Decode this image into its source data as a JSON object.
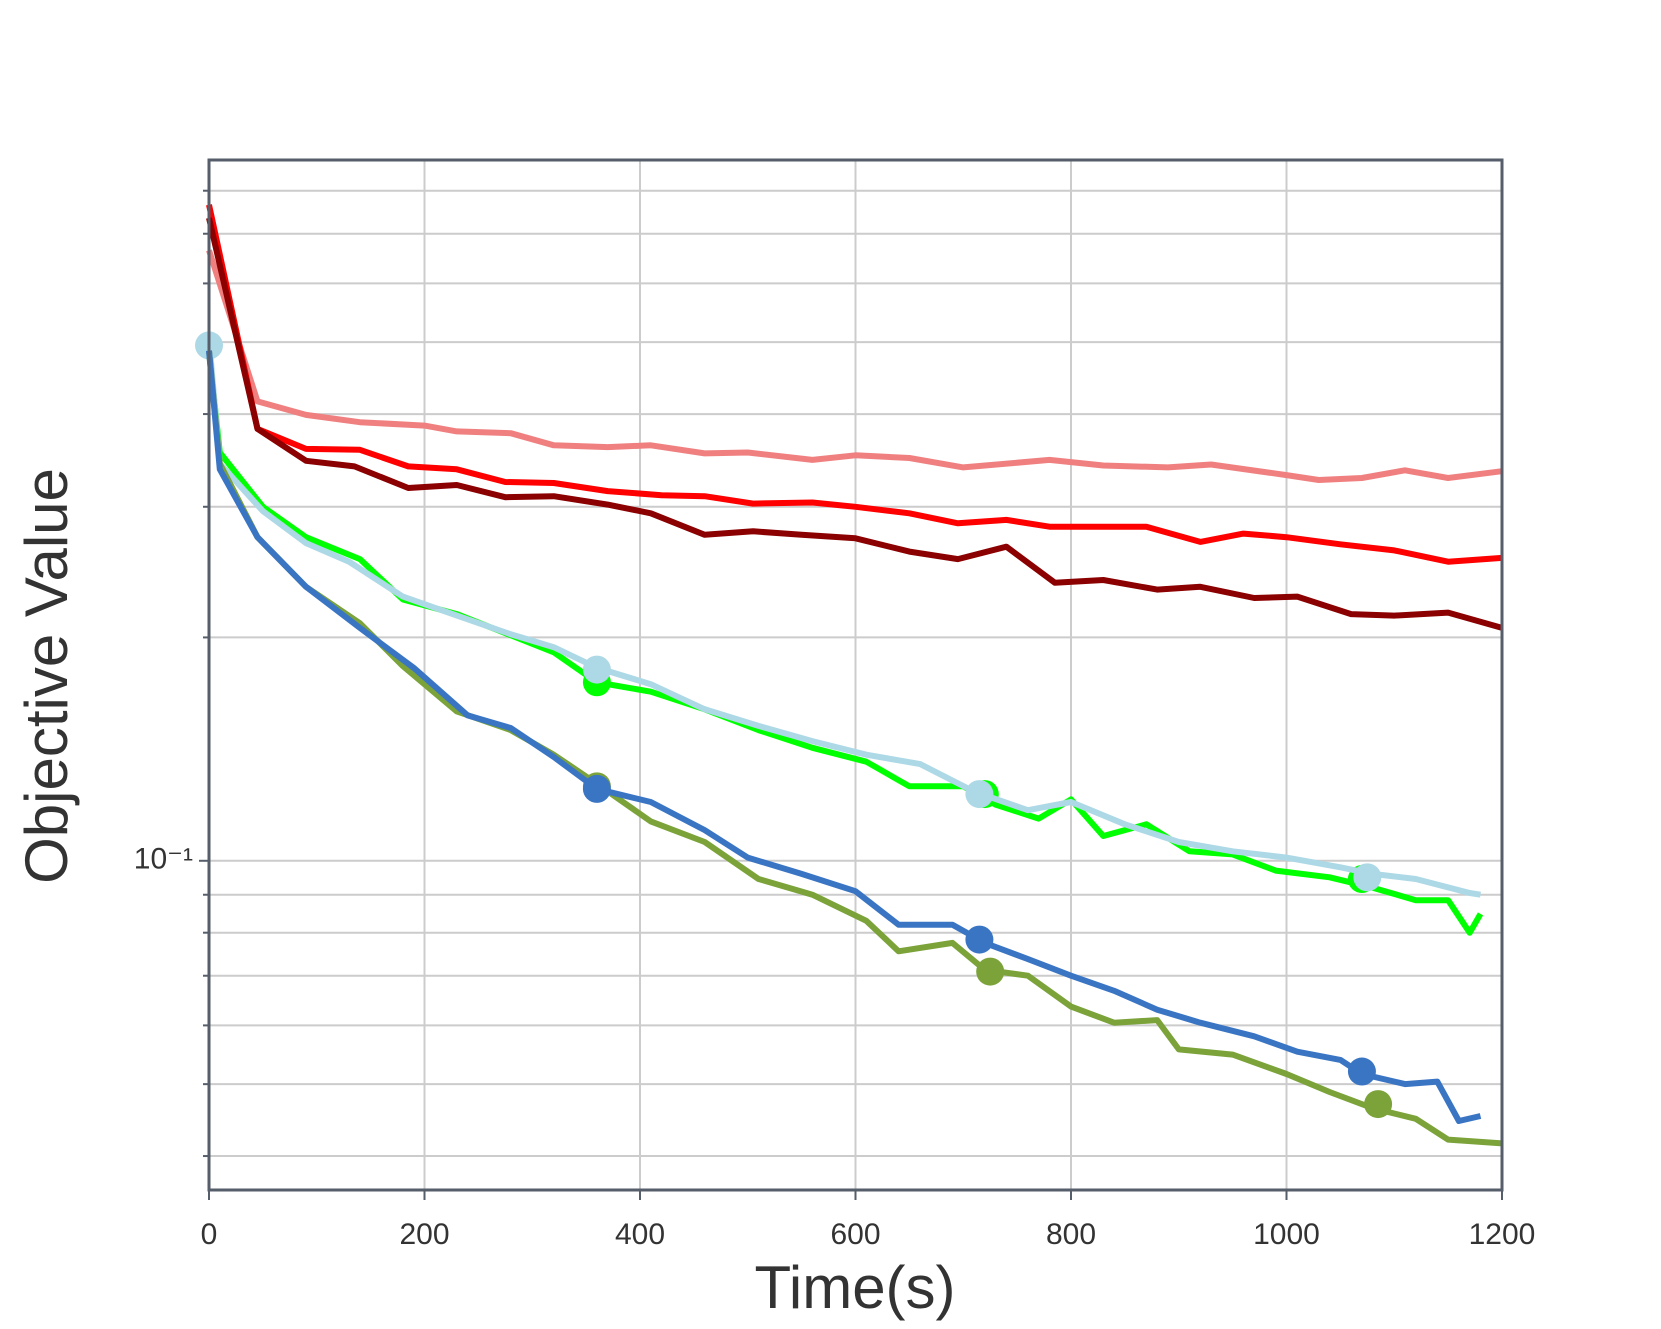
{
  "chart_data": {
    "type": "line",
    "x_label": "Time(s)",
    "y_label": "Objective Value",
    "log_y": true,
    "grid": true,
    "xlim": [
      0,
      1200
    ],
    "xticks": [
      0,
      200,
      400,
      600,
      800,
      1000,
      1200
    ],
    "ylim": [
      0.036,
      0.88
    ],
    "yticks": [
      {
        "value": 0.1,
        "label": "10⁻¹"
      }
    ],
    "minor_yticks": [
      0.04,
      0.05,
      0.06,
      0.07,
      0.08,
      0.09,
      0.2,
      0.3,
      0.4,
      0.5,
      0.6,
      0.7,
      0.8
    ],
    "series": [
      {
        "color": "#f08080",
        "x": [
          0,
          45,
          90,
          140,
          200,
          230,
          280,
          320,
          370,
          410,
          460,
          500,
          560,
          600,
          650,
          700,
          780,
          830,
          890,
          930,
          1000,
          1030,
          1070,
          1110,
          1150,
          1200
        ],
        "values": [
          0.665,
          0.416,
          0.399,
          0.39,
          0.386,
          0.379,
          0.377,
          0.363,
          0.361,
          0.363,
          0.354,
          0.355,
          0.347,
          0.352,
          0.349,
          0.339,
          0.347,
          0.341,
          0.339,
          0.342,
          0.331,
          0.326,
          0.328,
          0.336,
          0.328,
          0.335
        ]
      },
      {
        "color": "#ff0000",
        "x": [
          0,
          45,
          90,
          140,
          185,
          230,
          275,
          320,
          370,
          420,
          460,
          505,
          560,
          600,
          650,
          695,
          740,
          780,
          830,
          870,
          920,
          960,
          1000,
          1050,
          1100,
          1150,
          1200
        ],
        "values": [
          0.766,
          0.382,
          0.359,
          0.358,
          0.34,
          0.337,
          0.324,
          0.323,
          0.315,
          0.311,
          0.31,
          0.303,
          0.304,
          0.3,
          0.294,
          0.285,
          0.288,
          0.282,
          0.282,
          0.282,
          0.269,
          0.276,
          0.273,
          0.267,
          0.262,
          0.253,
          0.256
        ]
      },
      {
        "color": "#8b0000",
        "x": [
          0,
          45,
          90,
          135,
          185,
          230,
          275,
          320,
          370,
          410,
          460,
          505,
          550,
          600,
          650,
          695,
          740,
          785,
          830,
          880,
          920,
          970,
          1010,
          1060,
          1100,
          1150,
          1200
        ],
        "values": [
          0.735,
          0.382,
          0.346,
          0.34,
          0.318,
          0.321,
          0.309,
          0.31,
          0.302,
          0.294,
          0.275,
          0.278,
          0.275,
          0.272,
          0.261,
          0.255,
          0.265,
          0.237,
          0.239,
          0.232,
          0.234,
          0.226,
          0.227,
          0.215,
          0.214,
          0.216,
          0.206
        ]
      },
      {
        "color": "#00ff00",
        "x": [
          0,
          10,
          50,
          90,
          140,
          180,
          230,
          270,
          320,
          360,
          410,
          460,
          510,
          560,
          610,
          650,
          700,
          730,
          770,
          800,
          830,
          870,
          910,
          950,
          990,
          1040,
          1080,
          1120,
          1150,
          1170,
          1180
        ],
        "values": [
          0.487,
          0.355,
          0.3,
          0.273,
          0.255,
          0.225,
          0.215,
          0.204,
          0.191,
          0.174,
          0.169,
          0.16,
          0.15,
          0.142,
          0.136,
          0.126,
          0.126,
          0.119,
          0.114,
          0.121,
          0.108,
          0.112,
          0.103,
          0.102,
          0.097,
          0.095,
          0.092,
          0.0885,
          0.0885,
          0.08,
          0.0848
        ],
        "markers": {
          "x": [
            360,
            720,
            1070
          ],
          "values": [
            0.174,
            0.123,
            0.0945
          ]
        }
      },
      {
        "color": "#add8e6",
        "x": [
          0,
          10,
          50,
          90,
          130,
          180,
          230,
          280,
          320,
          360,
          410,
          460,
          510,
          560,
          610,
          660,
          710,
          760,
          800,
          850,
          900,
          950,
          1000,
          1050,
          1080,
          1120,
          1170,
          1180
        ],
        "values": [
          0.506,
          0.343,
          0.296,
          0.268,
          0.253,
          0.227,
          0.214,
          0.202,
          0.194,
          0.182,
          0.173,
          0.16,
          0.152,
          0.145,
          0.139,
          0.135,
          0.124,
          0.117,
          0.12,
          0.112,
          0.106,
          0.103,
          0.101,
          0.098,
          0.096,
          0.0945,
          0.0905,
          0.09
        ],
        "markers": {
          "x": [
            0,
            360,
            715,
            1075
          ],
          "values": [
            0.495,
            0.181,
            0.123,
            0.095
          ]
        }
      },
      {
        "color": "#7ba33a",
        "x": [
          0,
          10,
          45,
          90,
          140,
          180,
          230,
          280,
          320,
          360,
          410,
          460,
          510,
          560,
          610,
          640,
          690,
          720,
          760,
          800,
          840,
          880,
          900,
          950,
          1000,
          1040,
          1080,
          1120,
          1150,
          1200
        ],
        "values": [
          0.487,
          0.343,
          0.273,
          0.234,
          0.209,
          0.183,
          0.159,
          0.15,
          0.139,
          0.127,
          0.113,
          0.106,
          0.0945,
          0.09,
          0.083,
          0.0755,
          0.0775,
          0.0713,
          0.07,
          0.0636,
          0.0605,
          0.061,
          0.0557,
          0.0548,
          0.0516,
          0.0488,
          0.0464,
          0.0449,
          0.0421,
          0.0416
        ],
        "markers": {
          "x": [
            360,
            725,
            1085
          ],
          "values": [
            0.126,
            0.0709,
            0.047
          ]
        }
      },
      {
        "color": "#3a75c4",
        "x": [
          0,
          10,
          45,
          90,
          140,
          190,
          240,
          280,
          320,
          360,
          410,
          460,
          500,
          550,
          600,
          640,
          690,
          720,
          760,
          800,
          840,
          880,
          920,
          970,
          1010,
          1050,
          1070,
          1110,
          1140,
          1160,
          1180
        ],
        "values": [
          0.487,
          0.337,
          0.273,
          0.234,
          0.206,
          0.182,
          0.157,
          0.151,
          0.138,
          0.125,
          0.12,
          0.11,
          0.101,
          0.096,
          0.091,
          0.082,
          0.082,
          0.0775,
          0.0737,
          0.07,
          0.0668,
          0.063,
          0.0605,
          0.058,
          0.0553,
          0.0539,
          0.0516,
          0.05,
          0.0504,
          0.0446,
          0.0453
        ],
        "markers": {
          "x": [
            360,
            715,
            1070
          ],
          "values": [
            0.125,
            0.0783,
            0.052
          ]
        }
      }
    ]
  }
}
